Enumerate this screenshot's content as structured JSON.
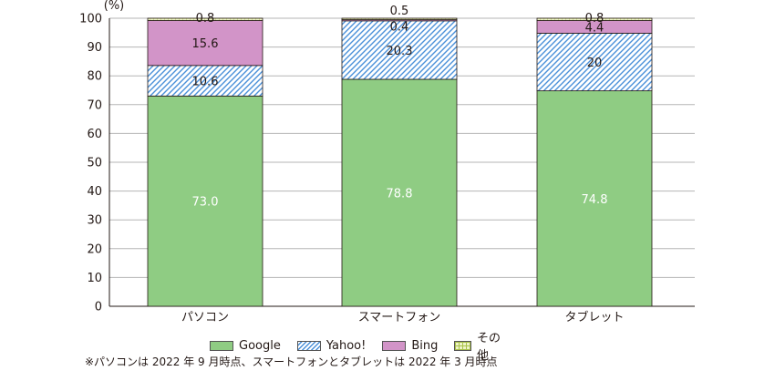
{
  "chart_data": {
    "type": "bar",
    "stacked": true,
    "unit_label": "(%)",
    "ylim": [
      0,
      100
    ],
    "yticks": [
      0,
      10,
      20,
      30,
      40,
      50,
      60,
      70,
      80,
      90,
      100
    ],
    "grid": true,
    "categories": [
      "パソコン",
      "スマートフォン",
      "タブレット"
    ],
    "series": [
      {
        "name": "Google",
        "values": [
          73.0,
          78.8,
          74.8
        ],
        "labels": [
          "73.0",
          "78.8",
          "74.8"
        ],
        "color": "#8fcc83",
        "pattern": "solid"
      },
      {
        "name": "Yahoo!",
        "values": [
          10.6,
          20.3,
          20
        ],
        "labels": [
          "10.6",
          "20.3",
          "20"
        ],
        "color": "#4a90d9",
        "pattern": "hatch"
      },
      {
        "name": "Bing",
        "values": [
          15.6,
          0.4,
          4.4
        ],
        "labels": [
          "15.6",
          "0.4",
          "4.4"
        ],
        "color": "#d294c8",
        "pattern": "solid"
      },
      {
        "name": "その他",
        "values": [
          0.8,
          0.5,
          0.8
        ],
        "labels": [
          "0.8",
          "0.5",
          "0.8"
        ],
        "color": "#c8dc78",
        "pattern": "grid"
      }
    ],
    "legend_position": "bottom"
  },
  "footnote": "※パソコンは 2022 年 9 月時点、スマートフォンとタブレットは 2022 年 3 月時点"
}
